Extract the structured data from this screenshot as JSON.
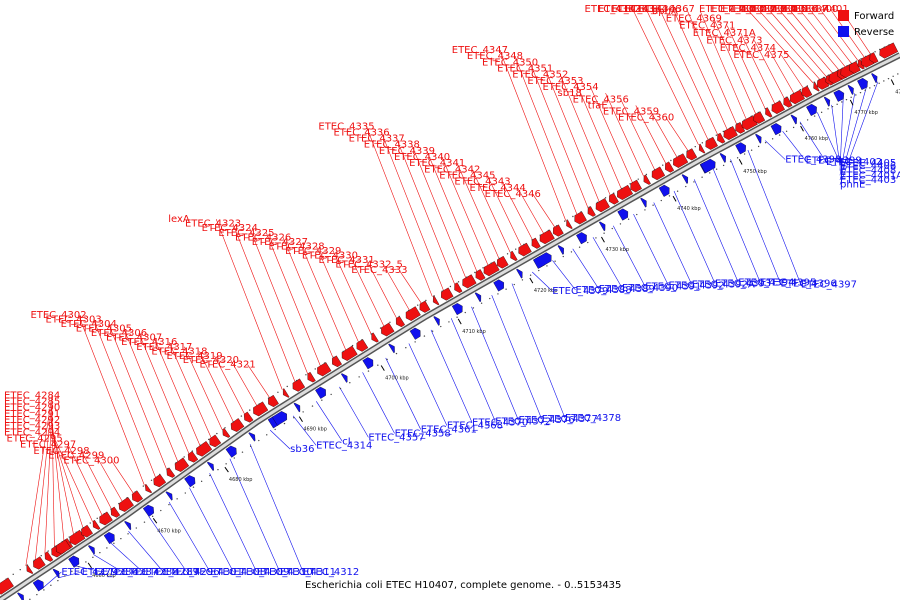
{
  "caption": "Escherichia coli ETEC H10407, complete genome. - 0..5153435",
  "legend": {
    "forward": "Forward",
    "reverse": "Reverse"
  },
  "colors": {
    "forward": "#ee1111",
    "reverse": "#1111ee",
    "backbone": "#888888"
  },
  "ticks": [
    "4650 kbp",
    "4660 kbp",
    "4670 kbp",
    "4680 kbp",
    "4690 kbp",
    "4700 kbp",
    "4710 kbp",
    "4720 kbp",
    "4730 kbp",
    "4740 kbp",
    "4750 kbp",
    "4760 kbp",
    "4770 kbp",
    "4780 kbp"
  ],
  "forward_labels": [
    "ETEC_4284",
    "ETEC_4285",
    "ETEC_4290",
    "ETEC_4291",
    "ETEC_4292",
    "ETEC_4293",
    "ETEC_4294",
    "ETEC_4295",
    "ETEC_4297",
    "ETEC_4298",
    "ETEC_4299",
    "ETEC_4300",
    "ETEC_4302",
    "ETEC_4303",
    "ETEC_4304",
    "ETEC_4305",
    "ETEC_4306",
    "ETEC_4307",
    "ETEC_4316",
    "ETEC_4317",
    "ETEC_4318",
    "ETEC_4319",
    "ETEC_4320",
    "ETEC_4321",
    "lexA",
    "ETEC_4323",
    "ETEC_4324",
    "ETEC_4325",
    "ETEC_4326",
    "ETEC_4327",
    "ETEC_4328",
    "ETEC_4329",
    "ETEC_4330",
    "ETEC_4331",
    "ETEC_4332_5",
    "ETEC_4333",
    "ETEC_4335",
    "ETEC_4336",
    "ETEC_4337",
    "ETEC_4338",
    "ETEC_4339",
    "ETEC_4340",
    "ETEC_4341",
    "ETEC_4342",
    "ETEC_4345",
    "ETEC_4343",
    "ETEC_4344",
    "ETEC_4346",
    "ETEC_4347",
    "ETEC_4348",
    "ETEC_4350",
    "ETEC_4351",
    "ETEC_4352",
    "ETEC_4353",
    "ETEC_4354",
    "sb18",
    "ETEC_4356",
    "tfaE",
    "ETEC_4359",
    "ETEC_4360",
    "ETEC_4362",
    "ETEC_4363",
    "ETEC_4364",
    "ETEC_4366",
    "ETEC_4367",
    "aphA",
    "ETEC_4369",
    "ETEC_4371",
    "ETEC_4371A",
    "ETEC_4373",
    "ETEC_4374",
    "ETEC_4375",
    "ETEC_4380",
    "ETEC_4381",
    "ETEC_4382",
    "ETEC_4383",
    "ETEC_4384",
    "ETEC_4385",
    "ETEC_4386",
    "ETEC_4387",
    "ETEC_4400",
    "ETEC_4401"
  ],
  "reverse_labels": [
    "ETEC_4279",
    "ETEC_4286",
    "ETEC_4287",
    "ETEC_4288",
    "ETEC_4289",
    "ETEC_4296",
    "ETEC_4301",
    "ETEC_4308",
    "ETEC_4309",
    "ETEC_4310",
    "ETEC_4311",
    "ETEC_4312",
    "sb36",
    "ETEC_4314",
    "cI",
    "ETEC_4357",
    "ETEC_4358",
    "ETEC_4361",
    "ETEC_4368",
    "ETEC_4370",
    "ETEC_4372",
    "ETEC_4376",
    "ETEC_4377",
    "ETEC_4378",
    "ETEC_4379",
    "ETEC_4388",
    "ETEC_4389",
    "ETEC_4390",
    "ETEC_4391",
    "ETEC_4392",
    "ETEC_4392A",
    "ETEC_4393",
    "ETEC_4394",
    "ETEC_4395",
    "ETEC_4396",
    "ETEC_4397",
    "ETEC_4398",
    "ETEC_4399",
    "ETEC_4402",
    "ETEC_4405",
    "ETEC_4406",
    "ETEC_4408",
    "ETEC_4401A",
    "ETEC_4403",
    "phnE"
  ]
}
